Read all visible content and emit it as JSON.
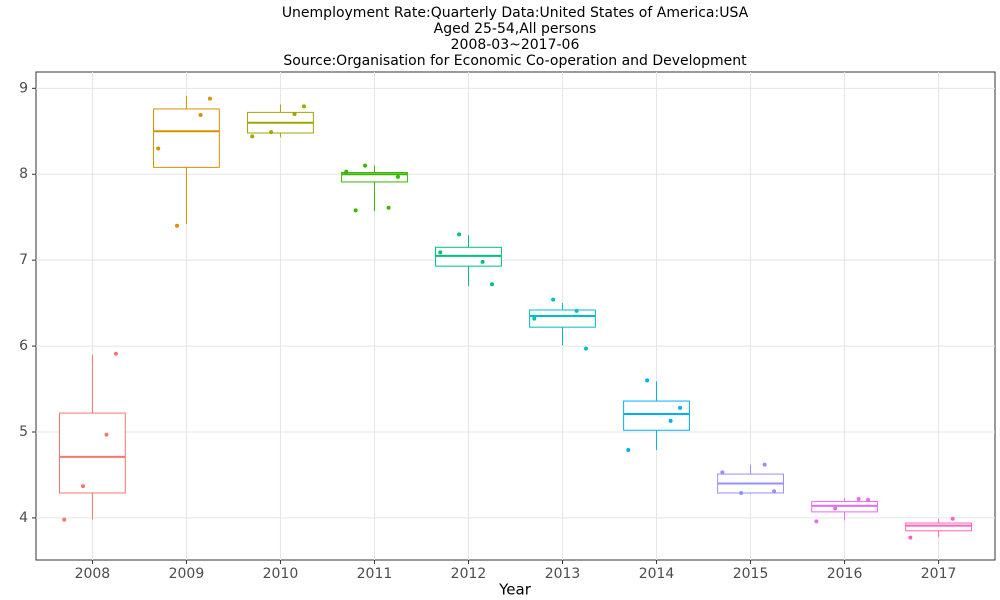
{
  "chart_data": {
    "type": "box",
    "title": [
      "Unemployment Rate:Quarterly Data:United States of America:USA",
      "Aged 25-54,All persons",
      "2008-03~2017-06",
      "Source:Organisation for Economic Co-operation and Development"
    ],
    "x_label": "Year",
    "categories": [
      "2008",
      "2009",
      "2010",
      "2011",
      "2012",
      "2013",
      "2014",
      "2015",
      "2016",
      "2017"
    ],
    "boxes": [
      {
        "color": "#F8766D",
        "min": 3.98,
        "q1": 4.29,
        "median": 4.71,
        "q3": 5.22,
        "max": 5.9,
        "points": [
          3.98,
          4.97,
          4.37,
          5.91
        ]
      },
      {
        "color": "#D89000",
        "min": 7.42,
        "q1": 8.08,
        "median": 8.5,
        "q3": 8.76,
        "max": 8.91,
        "points": [
          8.3,
          8.69,
          7.4,
          8.88
        ]
      },
      {
        "color": "#A3A500",
        "min": 8.43,
        "q1": 8.48,
        "median": 8.6,
        "q3": 8.72,
        "max": 8.81,
        "points": [
          8.44,
          8.7,
          8.49,
          8.79
        ]
      },
      {
        "color": "#39B600",
        "min": 7.57,
        "q1": 7.91,
        "median": 8.0,
        "q3": 8.02,
        "max": 8.1,
        "points": [
          8.03,
          7.61,
          8.1,
          7.97,
          7.58
        ]
      },
      {
        "color": "#00BF7D",
        "min": 6.7,
        "q1": 6.93,
        "median": 7.05,
        "q3": 7.15,
        "max": 7.29,
        "points": [
          7.09,
          6.98,
          7.3,
          6.72
        ]
      },
      {
        "color": "#00BFC4",
        "min": 6.01,
        "q1": 6.22,
        "median": 6.35,
        "q3": 6.42,
        "max": 6.5,
        "points": [
          6.32,
          6.41,
          6.54,
          5.97
        ]
      },
      {
        "color": "#00B0F6",
        "min": 4.79,
        "q1": 5.02,
        "median": 5.21,
        "q3": 5.36,
        "max": 5.59,
        "points": [
          4.79,
          5.13,
          5.6,
          5.28
        ]
      },
      {
        "color": "#9590FF",
        "min": 4.28,
        "q1": 4.29,
        "median": 4.4,
        "q3": 4.51,
        "max": 4.62,
        "points": [
          4.53,
          4.62,
          4.29,
          4.31
        ]
      },
      {
        "color": "#E76BF3",
        "min": 3.97,
        "q1": 4.07,
        "median": 4.14,
        "q3": 4.19,
        "max": 4.23,
        "points": [
          3.96,
          4.22,
          4.11,
          4.21
        ]
      },
      {
        "color": "#FF62BC",
        "min": 3.78,
        "q1": 3.85,
        "median": 3.91,
        "q3": 3.94,
        "max": 3.99,
        "points": [
          3.77,
          3.99
        ]
      }
    ],
    "ylim": [
      3.51,
      9.19
    ],
    "yticks": [
      4,
      5,
      6,
      7,
      8,
      9
    ],
    "grid": true
  }
}
